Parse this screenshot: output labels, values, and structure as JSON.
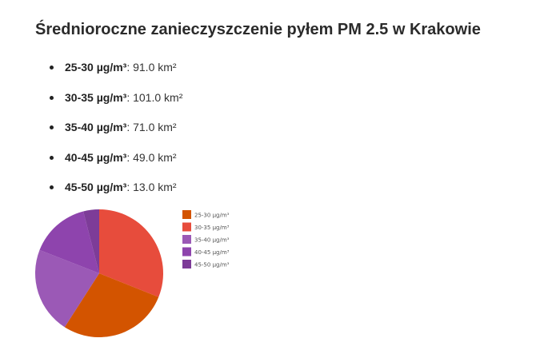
{
  "page": {
    "title": "Średnioroczne zanieczyszczenie pyłem PM 2.5 w Krakowie"
  },
  "items": [
    {
      "range": "25-30 µg/m³",
      "sep": ": ",
      "value": "91.0 km²"
    },
    {
      "range": "30-35 µg/m³",
      "sep": ": ",
      "value": "101.0 km²"
    },
    {
      "range": "35-40 µg/m³",
      "sep": ": ",
      "value": "71.0 km²"
    },
    {
      "range": "40-45 µg/m³",
      "sep": ": ",
      "value": "49.0 km²"
    },
    {
      "range": "45-50 µg/m³",
      "sep": ": ",
      "value": "13.0 km²"
    }
  ],
  "chart_data": {
    "type": "pie",
    "categories": [
      "25-30 µg/m³",
      "30-35 µg/m³",
      "35-40 µg/m³",
      "40-45 µg/m³",
      "45-50 µg/m³"
    ],
    "values": [
      91.0,
      101.0,
      71.0,
      49.0,
      13.0
    ],
    "colors": [
      "#d35400",
      "#e74c3c",
      "#9b59b6",
      "#8e44ad",
      "#7d3c98"
    ],
    "start_order": [
      1,
      0,
      2,
      3,
      4
    ],
    "legend_position": "right"
  }
}
